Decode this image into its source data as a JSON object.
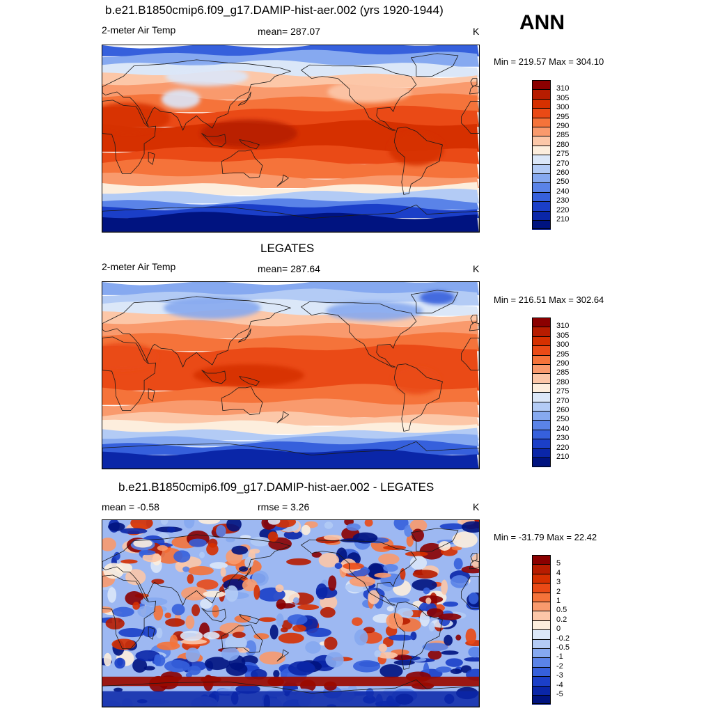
{
  "season": "ANN",
  "panels": [
    {
      "title": "b.e21.B1850cmip6.f09_g17.DAMIP-hist-aer.002 (yrs 1920-1944)",
      "left_label": "2-meter Air Temp",
      "center_label": "mean= 287.07",
      "units": "K",
      "minmax": "Min = 219.57 Max = 304.10",
      "map_kind": "model",
      "colorbar": {
        "labels": [
          "310",
          "305",
          "300",
          "295",
          "290",
          "285",
          "280",
          "275",
          "270",
          "260",
          "250",
          "240",
          "230",
          "220",
          "210"
        ],
        "colors": [
          "#8b0000",
          "#b71c00",
          "#d63000",
          "#ea4a16",
          "#f5733a",
          "#f99a6d",
          "#fcc7a8",
          "#fdeedd",
          "#dbe7f8",
          "#b3cbf5",
          "#86a9f0",
          "#5a83e8",
          "#3660dc",
          "#1b3fc8",
          "#0a26a8",
          "#001380"
        ]
      }
    },
    {
      "title": "LEGATES",
      "left_label": "2-meter Air Temp",
      "center_label": "mean= 287.64",
      "units": "K",
      "minmax": "Min = 216.51 Max = 302.64",
      "map_kind": "obs",
      "colorbar": {
        "labels": [
          "310",
          "305",
          "300",
          "295",
          "290",
          "285",
          "280",
          "275",
          "270",
          "260",
          "250",
          "240",
          "230",
          "220",
          "210"
        ],
        "colors": [
          "#8b0000",
          "#b71c00",
          "#d63000",
          "#ea4a16",
          "#f5733a",
          "#f99a6d",
          "#fcc7a8",
          "#fdeedd",
          "#dbe7f8",
          "#b3cbf5",
          "#86a9f0",
          "#5a83e8",
          "#3660dc",
          "#1b3fc8",
          "#0a26a8",
          "#001380"
        ]
      }
    },
    {
      "title": "b.e21.B1850cmip6.f09_g17.DAMIP-hist-aer.002 - LEGATES",
      "left_label": "mean =  -0.58",
      "center_label": "rmse =   3.26",
      "units": "K",
      "minmax": "Min = -31.79 Max =  22.42",
      "map_kind": "diff",
      "colorbar": {
        "labels": [
          "5",
          "4",
          "3",
          "2",
          "1",
          "0.5",
          "0.2",
          "0",
          "-0.2",
          "-0.5",
          "-1",
          "-2",
          "-3",
          "-4",
          "-5"
        ],
        "colors": [
          "#8b0000",
          "#b71c00",
          "#d63000",
          "#ea4a16",
          "#f5733a",
          "#f99a6d",
          "#fcc7a8",
          "#fdeedd",
          "#dbe7f8",
          "#b3cbf5",
          "#86a9f0",
          "#5a83e8",
          "#3660dc",
          "#1b3fc8",
          "#0a26a8",
          "#001380"
        ]
      }
    }
  ]
}
